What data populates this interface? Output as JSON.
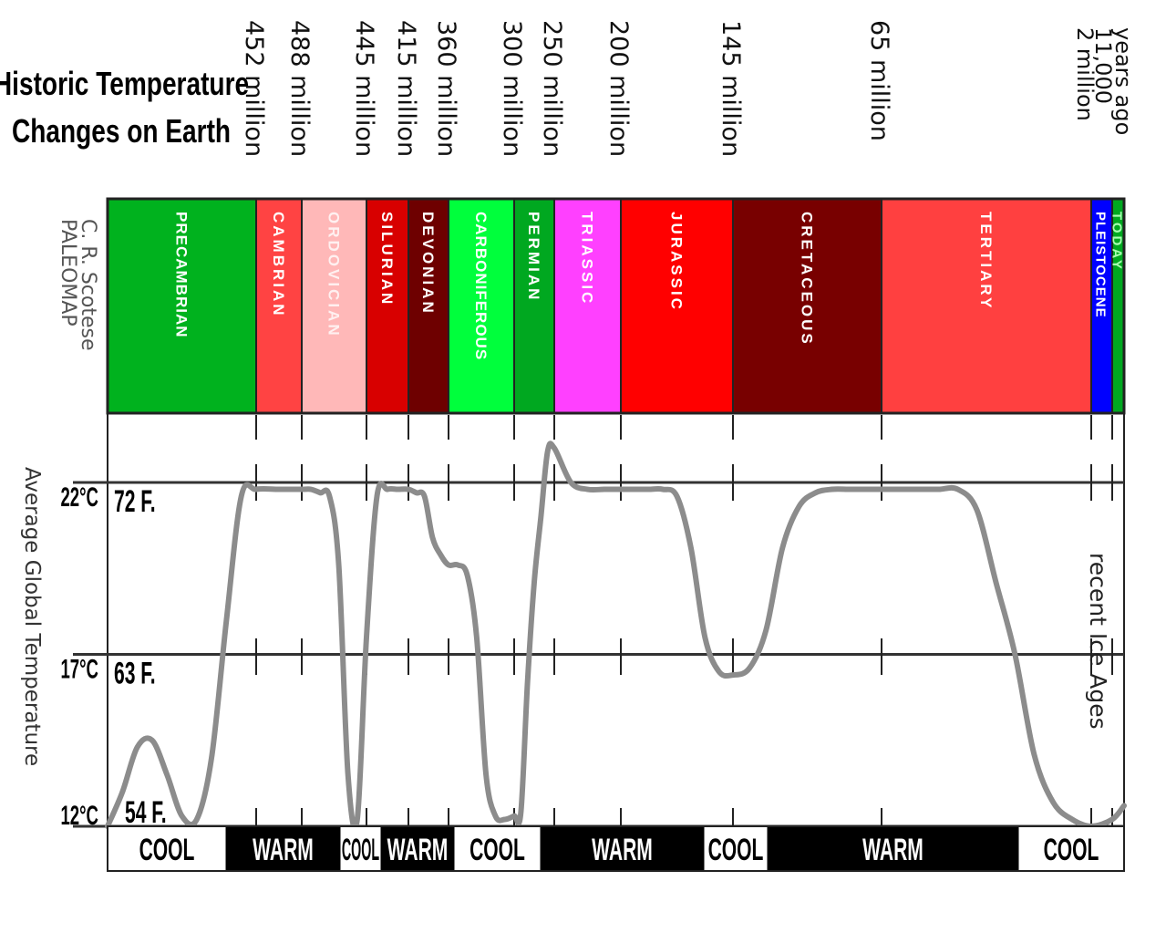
{
  "chart_data": {
    "type": "line",
    "title": [
      "Historic Temperature",
      "Changes on Earth"
    ],
    "credit": [
      "C. R. Scotese",
      "PALEOMAP"
    ],
    "ylabel": "Average Global Temperature",
    "y_ticks": [
      {
        "c": 22,
        "label_c": "22°C",
        "label_f": "72 F."
      },
      {
        "c": 17,
        "label_c": "17°C",
        "label_f": "63 F."
      },
      {
        "c": 12,
        "label_c": "12°C",
        "label_f": "54 F."
      }
    ],
    "ylim_c": [
      12,
      22
    ],
    "time_labels": [
      "452 million",
      "488 million",
      "445 million",
      "415 million",
      "360 million",
      "300 million",
      "250 million",
      "200 million",
      "145 million",
      "65 million"
    ],
    "time_labels_recent": [
      "years ago",
      "11,000",
      "2 million"
    ],
    "periods": [
      {
        "name": "PRECAMBRIAN",
        "color": "#00b21e",
        "text": "#ffffff",
        "temps": [
          12.0,
          13.0,
          14.3,
          14.5,
          13.5,
          12.3,
          12.2,
          14.0,
          18.0,
          21.6,
          21.8
        ]
      },
      {
        "name": "CAMBRIAN",
        "color": "#ff4343",
        "text": "#ffffff",
        "temps": [
          21.8,
          21.8,
          21.8
        ]
      },
      {
        "name": "ORDOVICIAN",
        "color": "#ffb8b8",
        "text": "#fff0f0",
        "temps": [
          21.8,
          21.8,
          21.7,
          21.6,
          19.6,
          13.5,
          12.2,
          17.5
        ]
      },
      {
        "name": "SILURIAN",
        "color": "#d80000",
        "text": "#ffffff",
        "temps": [
          17.5,
          21.6,
          21.8,
          21.8,
          21.8
        ]
      },
      {
        "name": "DEVONIAN",
        "color": "#6e0000",
        "text": "#ffffff",
        "temps": [
          21.8,
          21.7,
          21.6,
          20.4,
          19.9,
          19.6
        ]
      },
      {
        "name": "CARBONIFEROUS",
        "color": "#00ff3c",
        "text": "#ffffff",
        "temps": [
          19.6,
          19.6,
          19.3,
          17.5,
          13.5,
          12.3,
          12.2,
          12.3
        ]
      },
      {
        "name": "PERMIAN",
        "color": "#00a820",
        "text": "#ffffff",
        "temps": [
          12.3,
          12.4,
          16.2,
          19.1,
          21.0,
          22.9,
          23.0
        ]
      },
      {
        "name": "TRIASSIC",
        "color": "#ff40ff",
        "text": "#ffffff",
        "temps": [
          23.0,
          22.0,
          21.8,
          21.8,
          21.8
        ]
      },
      {
        "name": "JURASSIC",
        "color": "#ff0000",
        "text": "#ffffff",
        "temps": [
          21.8,
          21.8,
          21.8,
          21.8,
          21.6,
          20.1,
          17.5,
          16.5,
          16.4
        ]
      },
      {
        "name": "CRETACEOUS",
        "color": "#780000",
        "text": "#ffffff",
        "temps": [
          16.4,
          16.6,
          17.7,
          20.1,
          21.3,
          21.7,
          21.8,
          21.8,
          21.8,
          21.8
        ]
      },
      {
        "name": "TERTIARY",
        "color": "#ff4040",
        "text": "#ffffff",
        "temps": [
          21.8,
          21.8,
          21.8,
          21.8,
          21.8,
          21.2,
          19.1,
          17.0,
          14.1,
          12.7,
          12.2,
          12.0
        ]
      },
      {
        "name": "PLEISTOCENE",
        "color": "#0000ff",
        "text": "#ffffff",
        "temps": [
          12.0,
          12.2
        ]
      },
      {
        "name": "TODAY",
        "color": "#00a820",
        "text": "#a8ffb0",
        "temps": [
          12.2,
          12.6
        ]
      }
    ],
    "climate_bands": [
      {
        "label": "COOL",
        "kind": "cool"
      },
      {
        "label": "WARM",
        "kind": "warm"
      },
      {
        "label": "COOL",
        "kind": "cool"
      },
      {
        "label": "WARM",
        "kind": "warm"
      },
      {
        "label": "COOL",
        "kind": "cool"
      },
      {
        "label": "WARM",
        "kind": "warm"
      },
      {
        "label": "COOL",
        "kind": "cool"
      },
      {
        "label": "WARM",
        "kind": "warm"
      },
      {
        "label": "COOL",
        "kind": "cool"
      }
    ],
    "annotation": "recent Ice Ages",
    "line_color": "#8c8c8c",
    "grid": true
  }
}
